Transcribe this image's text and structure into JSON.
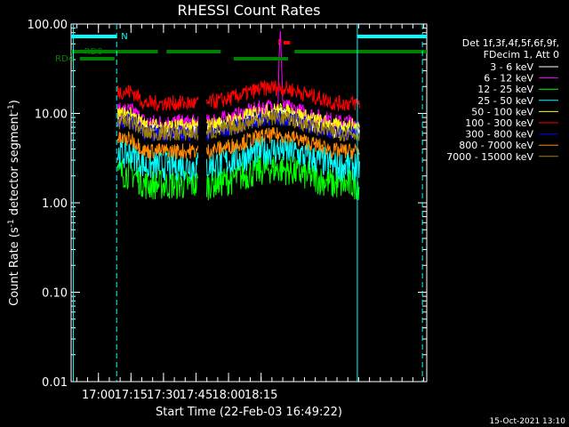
{
  "chart_data": {
    "type": "line",
    "title": "RHESSI Count Rates",
    "xlabel": "Start Time (22-Feb-03 16:49:22)",
    "ylabel_main": "Count Rate (s",
    "ylabel_sup1": "-1",
    "ylabel_mid": " detector segment",
    "ylabel_sup2": "-1",
    "ylabel_end": ")",
    "yscale": "log",
    "ylim": [
      0.01,
      100
    ],
    "xlim_min": [
      -2,
      162
    ],
    "yticks": [
      "100.00",
      "10.00",
      "1.00",
      "0.10",
      "0.01"
    ],
    "xticks": [
      {
        "min": 10.6,
        "label": "17:00"
      },
      {
        "min": 25.6,
        "label": "17:15"
      },
      {
        "min": 40.6,
        "label": "17:30"
      },
      {
        "min": 55.6,
        "label": "17:45"
      },
      {
        "min": 70.6,
        "label": "18:00"
      },
      {
        "min": 85.6,
        "label": "18:15"
      }
    ],
    "legend_header": [
      "Det 1f,3f,4f,5f,6f,9f,",
      "FDecim 1, Att 0"
    ],
    "series": [
      {
        "name": "3 - 6 keV",
        "color": "#ffffff",
        "level": 6.5
      },
      {
        "name": "6 - 12 keV",
        "color": "#ff00ff",
        "level": 8.0
      },
      {
        "name": "12 - 25 keV",
        "color": "#00ff00",
        "level": 1.6
      },
      {
        "name": "25 - 50 keV",
        "color": "#00ffff",
        "level": 2.6
      },
      {
        "name": "50 - 100 keV",
        "color": "#ffff00",
        "level": 7.2
      },
      {
        "name": "100 - 300 keV",
        "color": "#ff0000",
        "level": 13
      },
      {
        "name": "300 - 800 keV",
        "color": "#0000ff",
        "level": 6.0
      },
      {
        "name": "800 - 7000 keV",
        "color": "#ff8800",
        "level": 3.8
      },
      {
        "name": "7000 - 15000 keV",
        "color": "#a08000",
        "level": 6.0
      }
    ],
    "annotations": {
      "n_label": "N",
      "f_label": "F",
      "rd0_label": "RD0",
      "rd4_label": "RD4",
      "bar_color_cyan": "#00ffff",
      "bar_color_green": "#008000",
      "bar_color_red": "#ff0000"
    },
    "datestamp": "15-Oct-2021 13:10"
  }
}
